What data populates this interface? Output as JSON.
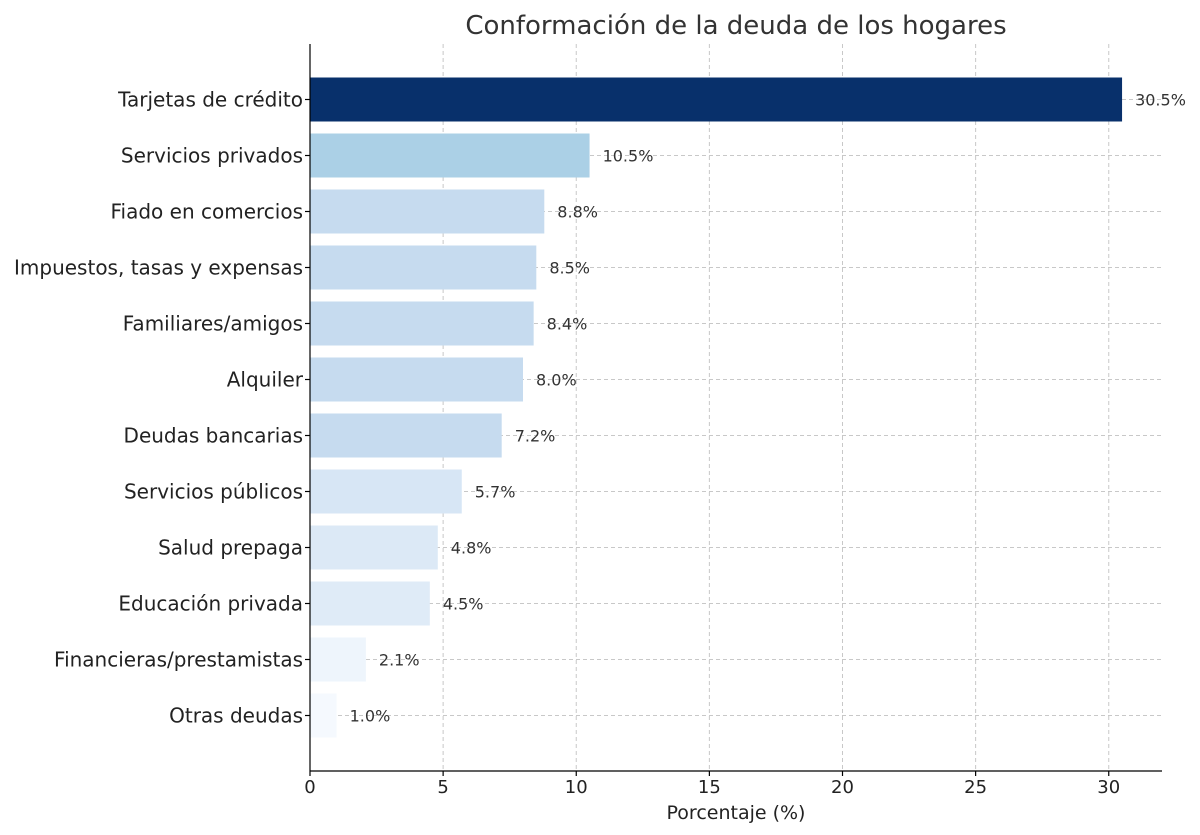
{
  "chart_data": {
    "type": "bar",
    "orientation": "horizontal",
    "title": "Conformación de la deuda de los hogares",
    "xlabel": "Porcentaje (%)",
    "ylabel": "",
    "xlim": [
      0,
      32
    ],
    "xticks": [
      0,
      5,
      10,
      15,
      20,
      25,
      30
    ],
    "grid": true,
    "categories": [
      "Tarjetas de crédito",
      "Servicios privados",
      "Fiado en comercios",
      "Impuestos, tasas y expensas",
      "Familiares/amigos",
      "Alquiler",
      "Deudas bancarias",
      "Servicios públicos",
      "Salud prepaga",
      "Educación privada",
      "Financieras/prestamistas",
      "Otras deudas"
    ],
    "values": [
      30.5,
      10.5,
      8.8,
      8.5,
      8.4,
      8.0,
      7.2,
      5.7,
      4.8,
      4.5,
      2.1,
      1.0
    ],
    "value_labels": [
      "30.5%",
      "10.5%",
      "8.8%",
      "8.5%",
      "8.4%",
      "8.0%",
      "7.2%",
      "5.7%",
      "4.8%",
      "4.5%",
      "2.1%",
      "1.0%"
    ],
    "colors": [
      "#08306b",
      "#abd0e6",
      "#c6dbef",
      "#c6dbef",
      "#c6dbef",
      "#c6dbef",
      "#c6dbef",
      "#d7e6f5",
      "#dce9f6",
      "#dfebf7",
      "#eef5fc",
      "#f5f9fe"
    ]
  }
}
